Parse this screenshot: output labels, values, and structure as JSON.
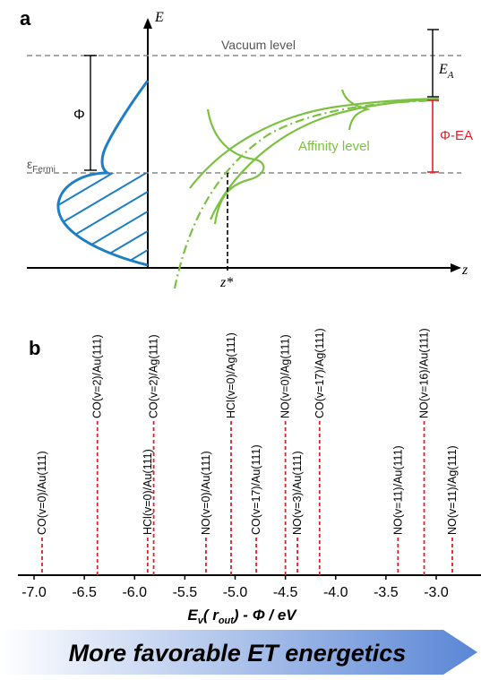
{
  "panel_a": {
    "label": "a",
    "axis_e": "E",
    "axis_z": "z",
    "vacuum_level": "Vacuum level",
    "phi": "Φ",
    "fermi_main": "ε",
    "fermi_sub": "Fermi",
    "affinity_level": "Affinity level",
    "ea_main": "E",
    "ea_sub": "A",
    "phi_minus_ea": "Φ-EA",
    "zstar": "z*",
    "colors": {
      "dos": "#1f7fc4",
      "affinity": "#7dc142",
      "phi_ea": "#e0202a",
      "dashed": "#888888"
    }
  },
  "panel_b": {
    "label": "b",
    "xlabel": "E_v( r_out) - Φ / eV",
    "xlabel_parts": {
      "e": "E",
      "v": "v",
      "r_pre": "( r",
      "out": "out",
      "post": ") - Φ / eV"
    },
    "banner": "More favorable ET energetics",
    "colors": {
      "marker": "#e0202a",
      "banner_start": "#ffffff",
      "banner_end": "#5a86d6"
    }
  },
  "chart_data": {
    "type": "scatter",
    "xlabel": "E_v( r_out) - Φ / eV",
    "xlim": [
      -7.15,
      -2.75
    ],
    "ticks": [
      "-7.0",
      "-6.5",
      "-6.0",
      "-5.5",
      "-5.0",
      "-4.5",
      "-4.0",
      "-3.5",
      "-3.0"
    ],
    "tick_values": [
      -7.0,
      -6.5,
      -6.0,
      -5.5,
      -5.0,
      -4.5,
      -4.0,
      -3.5,
      -3.0
    ],
    "points": [
      {
        "label": "CO(v=0)/Au(111)",
        "x": -6.92,
        "row": "low"
      },
      {
        "label": "CO(v=2)/Au(111)",
        "x": -6.37,
        "row": "high"
      },
      {
        "label": "HCl(v=0)/Au(111)",
        "x": -5.87,
        "row": "low"
      },
      {
        "label": "CO(v=2)/Ag(111)",
        "x": -5.81,
        "row": "high"
      },
      {
        "label": "NO(v=0)/Au(111)",
        "x": -5.29,
        "row": "low"
      },
      {
        "label": "HCl(v=0)/Ag(111)",
        "x": -5.04,
        "row": "high"
      },
      {
        "label": "CO(v=17)/Au(111)",
        "x": -4.79,
        "row": "low"
      },
      {
        "label": "NO(v=0)/Ag(111)",
        "x": -4.5,
        "row": "high"
      },
      {
        "label": "NO(v=3)/Au(111)",
        "x": -4.38,
        "row": "low"
      },
      {
        "label": "CO(v=17)/Ag(111)",
        "x": -4.16,
        "row": "high"
      },
      {
        "label": "NO(v=11)/Au(111)",
        "x": -3.38,
        "row": "low"
      },
      {
        "label": "NO(v=16)/Au(111)",
        "x": -3.12,
        "row": "high"
      },
      {
        "label": "NO(v=11)/Ag(111)",
        "x": -2.84,
        "row": "low"
      }
    ]
  }
}
